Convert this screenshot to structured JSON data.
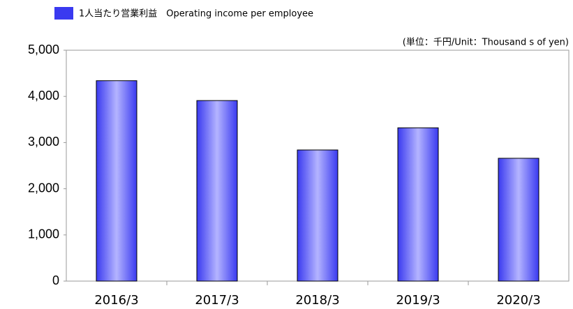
{
  "chart_data": {
    "type": "bar",
    "annotation": "(単位：千円/Unit：Thousand s  of yen)",
    "categories": [
      "2016/3",
      "2017/3",
      "2018/3",
      "2019/3",
      "2020/3"
    ],
    "series": [
      {
        "name": "1人当たり営業利益　Operating income per employee",
        "color": "#3a3af0",
        "values": [
          4340,
          3910,
          2840,
          3320,
          2660
        ]
      }
    ],
    "ylim": [
      0,
      5000
    ],
    "yticks": [
      0,
      {
        "value": 1000,
        "label": "1,000"
      },
      {
        "value": 2000,
        "label": "2,000"
      },
      {
        "value": 3000,
        "label": "3,000"
      },
      {
        "value": 4000,
        "label": "4,000"
      },
      {
        "value": 5000,
        "label": "5,000"
      }
    ],
    "legend": "top-left"
  }
}
